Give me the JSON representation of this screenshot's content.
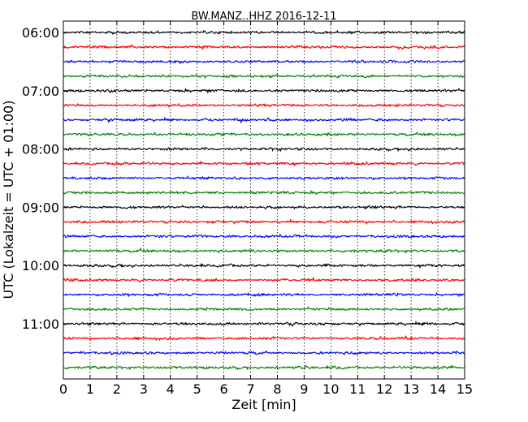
{
  "chart_data": {
    "type": "line",
    "title": "BW.MANZ..HHZ 2016-12-11",
    "xlabel": "Zeit  [min]",
    "ylabel": "UTC (Lokalzeit = UTC + 01:00)",
    "xlim": [
      0,
      15
    ],
    "x_ticks": [
      "0",
      "1",
      "2",
      "3",
      "4",
      "5",
      "6",
      "7",
      "8",
      "9",
      "10",
      "11",
      "12",
      "13",
      "14",
      "15"
    ],
    "y_ticks": [
      "06:00",
      "07:00",
      "08:00",
      "09:00",
      "10:00",
      "11:00"
    ],
    "row_start_times": [
      "06:00",
      "06:15",
      "06:30",
      "06:45",
      "07:00",
      "07:15",
      "07:30",
      "07:45",
      "08:00",
      "08:15",
      "08:30",
      "08:45",
      "09:00",
      "09:15",
      "09:30",
      "09:45",
      "10:00",
      "10:15",
      "10:30",
      "10:45",
      "11:00",
      "11:15",
      "11:30",
      "11:45"
    ],
    "trace_colors": [
      "#000000",
      "#ff0000",
      "#0000ff",
      "#008000"
    ],
    "grid": "vertical dotted at each minute",
    "legend": "none",
    "series": [
      {
        "values": [
          0,
          0,
          0
        ]
      }
    ]
  }
}
